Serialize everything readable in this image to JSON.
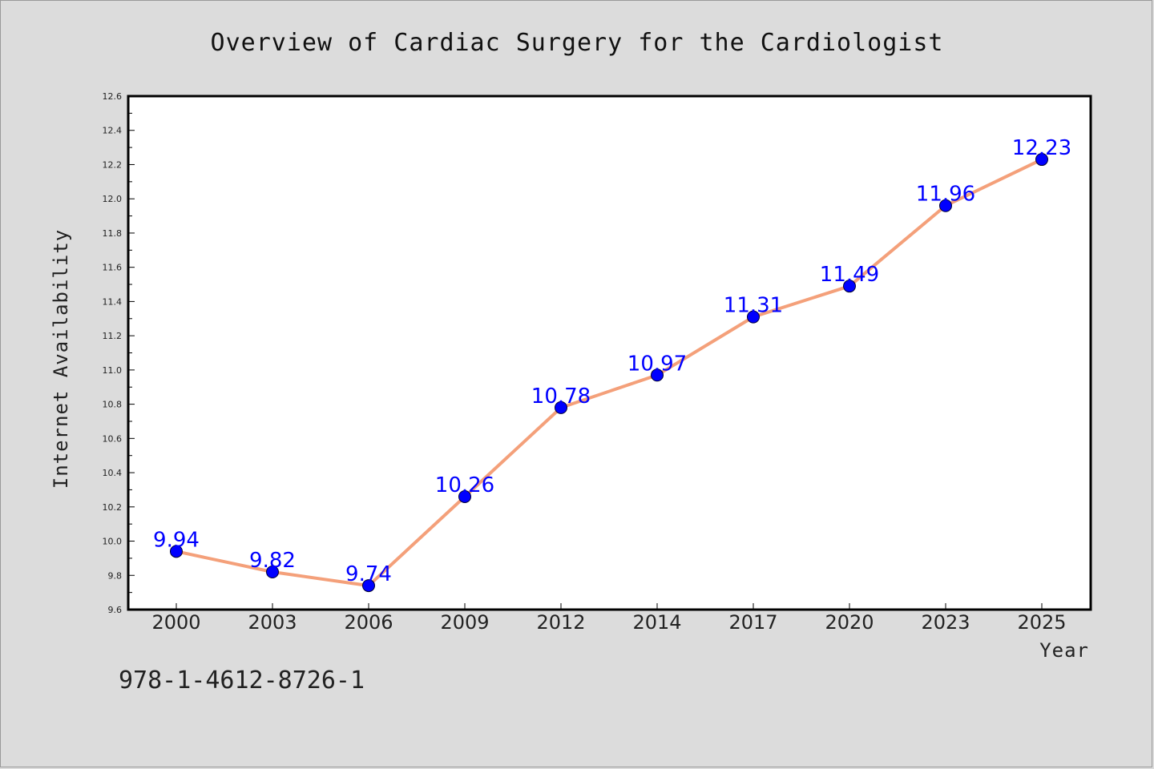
{
  "chart_data": {
    "type": "line",
    "title": "Overview of Cardiac Surgery for the Cardiologist",
    "xlabel": "Year",
    "ylabel": "Internet Availability",
    "categories": [
      "2000",
      "2003",
      "2006",
      "2009",
      "2012",
      "2014",
      "2017",
      "2020",
      "2023",
      "2025"
    ],
    "series": [
      {
        "values": [
          9.94,
          9.82,
          9.74,
          10.26,
          10.78,
          10.97,
          11.31,
          11.49,
          11.96,
          12.23
        ],
        "line_color": "#f4a07a",
        "marker_color": "#0000ff"
      }
    ],
    "data_labels": [
      "9.94",
      "9.82",
      "9.74",
      "10.26",
      "10.78",
      "10.97",
      "11.31",
      "11.49",
      "11.96",
      "12.23"
    ],
    "ylim": [
      9.6,
      12.6
    ],
    "yticks": [
      "9.6",
      "9.8",
      "10.0",
      "10.2",
      "10.4",
      "10.6",
      "10.8",
      "11.0",
      "11.2",
      "11.4",
      "11.6",
      "11.8",
      "12.0",
      "12.2",
      "12.4",
      "12.6"
    ],
    "grid": false,
    "legend": "none"
  },
  "footer": {
    "isbn": "978-1-4612-8726-1"
  }
}
